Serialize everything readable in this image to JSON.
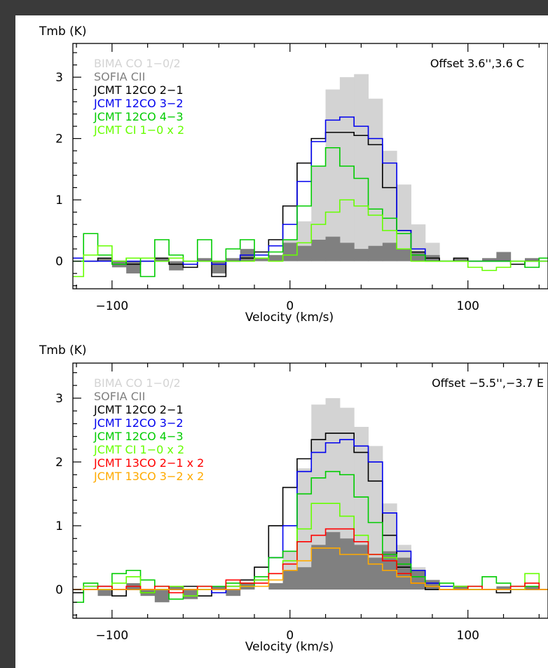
{
  "colors": {
    "bima": "#d3d3d3",
    "sofia": "#808080",
    "co21": "#000000",
    "co32": "#0000ee",
    "co43": "#00cc00",
    "ci10": "#66ff00",
    "co13_21": "#ff0000",
    "co13_32": "#ffaa00"
  },
  "chart_data": [
    {
      "type": "line",
      "ylabel": "Tmb (K)",
      "xlabel": "Velocity (km/s)",
      "annotation": "Offset 3.6'',3.6 C",
      "xlim": [
        -122,
        145
      ],
      "ylim": [
        -0.45,
        3.55
      ],
      "xticks": [
        -100,
        0,
        100
      ],
      "yticks": [
        0,
        1,
        2,
        3
      ],
      "x": [
        -120,
        -112,
        -104,
        -96,
        -88,
        -80,
        -72,
        -64,
        -56,
        -48,
        -40,
        -32,
        -24,
        -16,
        -8,
        0,
        8,
        16,
        24,
        32,
        40,
        48,
        56,
        64,
        72,
        80,
        88,
        96,
        104,
        112,
        120,
        128,
        136,
        144
      ],
      "series": [
        {
          "name": "BIMA CO 1−0/2",
          "key": "bima",
          "fill": true,
          "values": [
            0,
            0,
            0,
            0,
            0,
            0,
            0,
            0,
            0,
            0,
            0,
            0,
            0,
            0,
            0.1,
            0.35,
            0.65,
            1.55,
            2.8,
            3.0,
            3.05,
            2.65,
            1.8,
            1.25,
            0.6,
            0.3,
            0,
            0,
            0,
            0,
            0,
            0,
            0,
            0
          ]
        },
        {
          "name": "SOFIA CII",
          "key": "sofia",
          "fill": true,
          "values": [
            0,
            0,
            0.05,
            -0.1,
            -0.2,
            0,
            0.05,
            -0.15,
            0,
            0.05,
            -0.2,
            0.05,
            0.2,
            0.05,
            0.1,
            0.3,
            0.25,
            0.35,
            0.4,
            0.3,
            0.2,
            0.25,
            0.3,
            0.2,
            0.15,
            0.1,
            0,
            0.05,
            0,
            0.05,
            0.15,
            0,
            0.05,
            0
          ]
        },
        {
          "name": "JCMT 12CO 2−1",
          "key": "co21",
          "fill": false,
          "values": [
            0.05,
            0,
            0.05,
            0,
            -0.05,
            0,
            0.05,
            -0.05,
            -0.1,
            0,
            -0.25,
            0,
            0.05,
            0.15,
            0.35,
            0.9,
            1.6,
            2.0,
            2.1,
            2.1,
            2.05,
            1.9,
            1.2,
            0.5,
            0.15,
            0.05,
            0,
            0.05,
            0,
            0,
            0,
            -0.05,
            0,
            0
          ]
        },
        {
          "name": "JCMT 12CO 3−2",
          "key": "co32",
          "fill": false,
          "values": [
            0.05,
            0,
            0,
            0,
            0,
            0,
            0,
            0.05,
            -0.05,
            0,
            -0.05,
            0,
            0.1,
            0.1,
            0.25,
            0.6,
            1.3,
            1.95,
            2.3,
            2.35,
            2.2,
            2.0,
            1.6,
            0.5,
            0.2,
            0,
            0,
            0,
            0,
            0,
            0,
            0,
            0,
            0
          ]
        },
        {
          "name": "JCMT 12CO 4−3",
          "key": "co43",
          "fill": false,
          "values": [
            0,
            0.45,
            0.1,
            -0.05,
            0.05,
            -0.25,
            0.35,
            0.1,
            0,
            0.35,
            0,
            0.2,
            0.35,
            0.05,
            0.15,
            0.35,
            0.9,
            1.55,
            1.85,
            1.55,
            1.35,
            0.85,
            0.7,
            0.45,
            0.1,
            0,
            0,
            0,
            0,
            0,
            0,
            0,
            -0.1,
            0.05
          ]
        },
        {
          "name": "JCMT CI 1−0 x 2",
          "key": "ci10",
          "fill": false,
          "values": [
            -0.25,
            0.1,
            0.25,
            0,
            0.05,
            0.05,
            0,
            0.05,
            0,
            0,
            0,
            0,
            0,
            0.05,
            0,
            0.1,
            0.3,
            0.6,
            0.8,
            1.0,
            0.9,
            0.75,
            0.5,
            0.2,
            0,
            0,
            0,
            0,
            -0.1,
            -0.15,
            -0.1,
            0,
            0,
            0
          ]
        }
      ]
    },
    {
      "type": "line",
      "ylabel": "Tmb (K)",
      "xlabel": "Velocity (km/s)",
      "annotation": "Offset −5.5'',−3.7 E",
      "xlim": [
        -122,
        145
      ],
      "ylim": [
        -0.45,
        3.55
      ],
      "xticks": [
        -100,
        0,
        100
      ],
      "yticks": [
        0,
        1,
        2,
        3
      ],
      "x": [
        -120,
        -112,
        -104,
        -96,
        -88,
        -80,
        -72,
        -64,
        -56,
        -48,
        -40,
        -32,
        -24,
        -16,
        -8,
        0,
        8,
        16,
        24,
        32,
        40,
        48,
        56,
        64,
        72,
        80,
        88,
        96,
        104,
        112,
        120,
        128,
        136,
        144
      ],
      "series": [
        {
          "name": "BIMA CO 1−0/2",
          "key": "bima",
          "fill": true,
          "values": [
            0,
            0,
            0,
            0,
            0,
            0,
            0,
            0,
            0,
            0,
            0,
            0,
            0,
            0,
            0,
            0.6,
            1.9,
            2.9,
            3.0,
            2.85,
            2.55,
            2.25,
            1.35,
            0.7,
            0.35,
            0.1,
            0,
            0,
            0,
            0,
            0,
            0,
            0,
            0
          ]
        },
        {
          "name": "SOFIA CII",
          "key": "sofia",
          "fill": true,
          "values": [
            0,
            0,
            -0.1,
            0,
            0.1,
            -0.1,
            -0.2,
            0.05,
            -0.15,
            0,
            0.05,
            -0.1,
            0.1,
            0,
            0.1,
            0.3,
            0.35,
            0.7,
            0.9,
            0.8,
            0.7,
            0.5,
            0.6,
            0.5,
            0.3,
            0.15,
            0,
            0.05,
            0,
            0,
            0.05,
            0,
            0.05,
            0
          ]
        },
        {
          "name": "JCMT 12CO 2−1",
          "key": "co21",
          "fill": false,
          "values": [
            -0.05,
            0,
            0.05,
            -0.1,
            0,
            -0.05,
            0,
            0,
            0.05,
            -0.1,
            0,
            0.05,
            0.15,
            0.35,
            1.0,
            1.6,
            2.05,
            2.35,
            2.45,
            2.45,
            2.15,
            1.7,
            0.85,
            0.35,
            0.1,
            0,
            0,
            0.05,
            0,
            0,
            -0.05,
            0,
            0,
            0
          ]
        },
        {
          "name": "JCMT 12CO 3−2",
          "key": "co32",
          "fill": false,
          "values": [
            0,
            0.05,
            0,
            0,
            0,
            0,
            0,
            0,
            0,
            0,
            -0.05,
            0,
            0.1,
            0.15,
            0.5,
            1.0,
            1.85,
            2.15,
            2.3,
            2.35,
            2.25,
            2.0,
            1.2,
            0.6,
            0.3,
            0.1,
            0.05,
            0,
            0,
            0,
            0,
            0,
            0,
            0
          ]
        },
        {
          "name": "JCMT 12CO 4−3",
          "key": "co43",
          "fill": false,
          "values": [
            -0.2,
            0.1,
            0,
            0.25,
            0.3,
            0.15,
            0.05,
            -0.15,
            0,
            0.05,
            0.05,
            0.1,
            0.05,
            0.2,
            0.5,
            0.6,
            1.5,
            1.75,
            1.85,
            1.8,
            1.45,
            1.05,
            0.55,
            0.4,
            0.2,
            0.05,
            0.1,
            0,
            0.05,
            0.2,
            0.1,
            0.05,
            0.05,
            0
          ]
        },
        {
          "name": "JCMT CI 1−0 x 2",
          "key": "ci10",
          "fill": false,
          "values": [
            0,
            0.05,
            0,
            0.1,
            0.2,
            -0.05,
            0,
            0.05,
            -0.1,
            0,
            0,
            0.05,
            0.1,
            0.15,
            0.25,
            0.45,
            0.95,
            1.35,
            1.35,
            1.15,
            0.85,
            0.55,
            0.5,
            0.25,
            0.1,
            0.05,
            0,
            0.05,
            0,
            0,
            0,
            0,
            0.25,
            0
          ]
        },
        {
          "name": "JCMT 13CO 2−1 x 2",
          "key": "co13_21",
          "fill": false,
          "values": [
            0,
            0,
            0.05,
            0,
            0.05,
            0,
            0.05,
            -0.05,
            0,
            0.05,
            0,
            0.15,
            0.1,
            0.1,
            0.25,
            0.4,
            0.75,
            0.85,
            0.95,
            0.95,
            0.75,
            0.55,
            0.45,
            0.25,
            0.1,
            0.05,
            0,
            0,
            0.05,
            0,
            0,
            0.05,
            0.1,
            0
          ]
        },
        {
          "name": "JCMT 13CO 3−2 x 2",
          "key": "co13_32",
          "fill": false,
          "values": [
            0,
            0,
            0,
            0,
            0,
            0,
            0,
            0,
            0,
            0,
            0,
            0,
            0.05,
            0.05,
            0.15,
            0.3,
            0.45,
            0.65,
            0.65,
            0.55,
            0.55,
            0.4,
            0.3,
            0.2,
            0.1,
            0.05,
            0,
            0,
            0,
            0,
            0,
            0,
            0,
            0
          ]
        }
      ]
    }
  ]
}
